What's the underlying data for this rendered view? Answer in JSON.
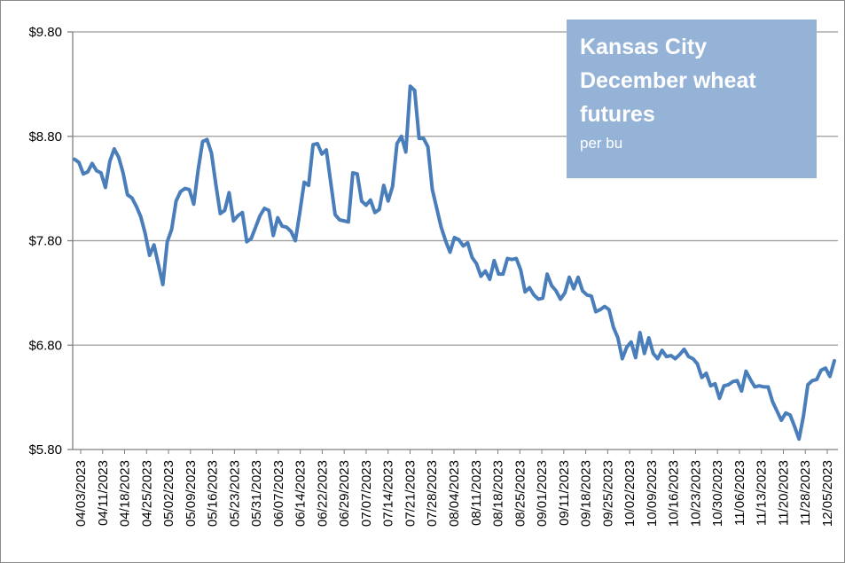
{
  "chart_data": {
    "type": "line",
    "title": "Kansas City December wheat futures",
    "subtitle": "per bu",
    "xlabel": "",
    "ylabel": "",
    "ylim": [
      5.8,
      9.8
    ],
    "y_ticks": [
      "$5.80",
      "$6.80",
      "$7.80",
      "$8.80",
      "$9.80"
    ],
    "y_tick_values": [
      5.8,
      6.8,
      7.8,
      8.8,
      9.8
    ],
    "x_tick_labels": [
      "04/03/2023",
      "04/11/2023",
      "04/18/2023",
      "04/25/2023",
      "05/02/2023",
      "05/09/2023",
      "05/16/2023",
      "05/23/2023",
      "05/31/2023",
      "06/07/2023",
      "06/14/2023",
      "06/22/2023",
      "06/29/2023",
      "07/07/2023",
      "07/14/2023",
      "07/21/2023",
      "07/28/2023",
      "08/04/2023",
      "08/11/2023",
      "08/18/2023",
      "08/25/2023",
      "09/01/2023",
      "09/11/2023",
      "09/18/2023",
      "09/25/2023",
      "10/02/2023",
      "10/09/2023",
      "10/16/2023",
      "10/23/2023",
      "10/30/2023",
      "11/06/2023",
      "11/13/2023",
      "11/20/2023",
      "11/28/2023",
      "12/05/2023"
    ],
    "grid": true,
    "legend": "none",
    "line_color": "#4a7ebb",
    "series": [
      {
        "values": [
          8.58,
          8.55,
          8.44,
          8.46,
          8.54,
          8.47,
          8.45,
          8.31,
          8.56,
          8.68,
          8.6,
          8.45,
          8.24,
          8.21,
          8.13,
          8.03,
          7.87,
          7.66,
          7.76,
          7.57,
          7.38,
          7.79,
          7.91,
          8.18,
          8.27,
          8.3,
          8.29,
          8.15,
          8.48,
          8.75,
          8.77,
          8.64,
          8.34,
          8.06,
          8.09,
          8.26,
          7.99,
          8.04,
          8.07,
          7.79,
          7.82,
          7.93,
          8.04,
          8.11,
          8.09,
          7.85,
          8.02,
          7.94,
          7.93,
          7.89,
          7.8,
          8.07,
          8.36,
          8.33,
          8.72,
          8.73,
          8.63,
          8.67,
          8.36,
          8.05,
          8.0,
          7.99,
          7.98,
          8.45,
          8.44,
          8.18,
          8.14,
          8.19,
          8.07,
          8.1,
          8.33,
          8.18,
          8.32,
          8.73,
          8.8,
          8.65,
          9.28,
          9.24,
          8.78,
          8.78,
          8.7,
          8.29,
          8.11,
          7.93,
          7.8,
          7.69,
          7.83,
          7.81,
          7.75,
          7.78,
          7.64,
          7.58,
          7.46,
          7.51,
          7.43,
          7.61,
          7.48,
          7.48,
          7.63,
          7.62,
          7.63,
          7.52,
          7.31,
          7.35,
          7.28,
          7.24,
          7.25,
          7.48,
          7.37,
          7.32,
          7.24,
          7.3,
          7.45,
          7.34,
          7.45,
          7.32,
          7.28,
          7.27,
          7.12,
          7.14,
          7.17,
          7.14,
          6.97,
          6.87,
          6.67,
          6.78,
          6.83,
          6.68,
          6.92,
          6.72,
          6.87,
          6.72,
          6.67,
          6.75,
          6.69,
          6.7,
          6.67,
          6.71,
          6.76,
          6.69,
          6.67,
          6.62,
          6.49,
          6.53,
          6.41,
          6.43,
          6.29,
          6.41,
          6.42,
          6.45,
          6.46,
          6.36,
          6.55,
          6.47,
          6.4,
          6.41,
          6.4,
          6.4,
          6.26,
          6.17,
          6.08,
          6.15,
          6.13,
          6.02,
          5.9,
          6.12,
          6.42,
          6.46,
          6.47,
          6.56,
          6.58,
          6.5,
          6.65
        ]
      }
    ]
  }
}
